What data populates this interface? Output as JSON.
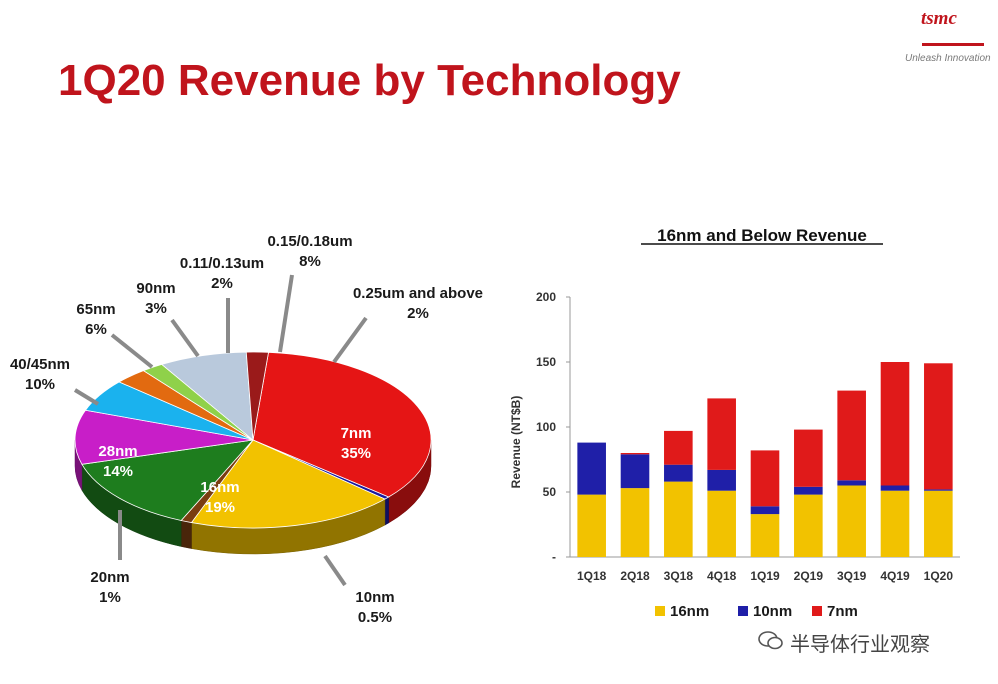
{
  "header": {
    "title": "1Q20 Revenue by Technology",
    "logo_text": "tsmc",
    "tagline": "Unleash Innovation"
  },
  "watermark": {
    "text": "半导体行业观察"
  },
  "colors": {
    "title": "#c0141c",
    "16nm": "#f2c200",
    "10nm": "#1f1fa8",
    "7nm": "#e01a1a"
  },
  "chart_data": [
    {
      "type": "pie",
      "title": "",
      "slices": [
        {
          "label": "7nm",
          "value": 35,
          "percent_text": "35%",
          "color": "#e51515"
        },
        {
          "label": "10nm",
          "value": 0.5,
          "percent_text": "0.5%",
          "color": "#1a1aa0"
        },
        {
          "label": "16nm",
          "value": 19,
          "percent_text": "19%",
          "color": "#f2c200"
        },
        {
          "label": "20nm",
          "value": 1,
          "percent_text": "1%",
          "color": "#7a3d10"
        },
        {
          "label": "28nm",
          "value": 14,
          "percent_text": "14%",
          "color": "#1e7d1e"
        },
        {
          "label": "40/45nm",
          "value": 10,
          "percent_text": "10%",
          "color": "#c81ec8"
        },
        {
          "label": "65nm",
          "value": 6,
          "percent_text": "6%",
          "color": "#1ab2ee"
        },
        {
          "label": "90nm",
          "value": 3,
          "percent_text": "3%",
          "color": "#e26a10"
        },
        {
          "label": "0.11/0.13um",
          "value": 2,
          "percent_text": "2%",
          "color": "#8fd14a"
        },
        {
          "label": "0.15/0.18um",
          "value": 8,
          "percent_text": "8%",
          "color": "#b9c9dc"
        },
        {
          "label": "0.25um and above",
          "value": 2,
          "percent_text": "2%",
          "color": "#9a1a1a"
        }
      ]
    },
    {
      "type": "bar",
      "stacked": true,
      "title": "16nm and Below Revenue",
      "ylabel": "Revenue (NT$B)",
      "xlabel": "",
      "ylim": [
        0,
        200
      ],
      "yticks": [
        0,
        50,
        100,
        150,
        200
      ],
      "ytick_labels": [
        "-",
        "50",
        "100",
        "150",
        "200"
      ],
      "categories": [
        "1Q18",
        "2Q18",
        "3Q18",
        "4Q18",
        "1Q19",
        "2Q19",
        "3Q19",
        "4Q19",
        "1Q20"
      ],
      "series": [
        {
          "name": "16nm",
          "color": "#f2c200",
          "values": [
            48,
            53,
            58,
            51,
            33,
            48,
            55,
            51,
            51
          ]
        },
        {
          "name": "10nm",
          "color": "#1f1fa8",
          "values": [
            40,
            26,
            13,
            16,
            6,
            6,
            4,
            4,
            1
          ]
        },
        {
          "name": "7nm",
          "color": "#e01a1a",
          "values": [
            0,
            1,
            26,
            55,
            43,
            44,
            69,
            95,
            97
          ]
        }
      ],
      "legend": "bottom"
    }
  ]
}
